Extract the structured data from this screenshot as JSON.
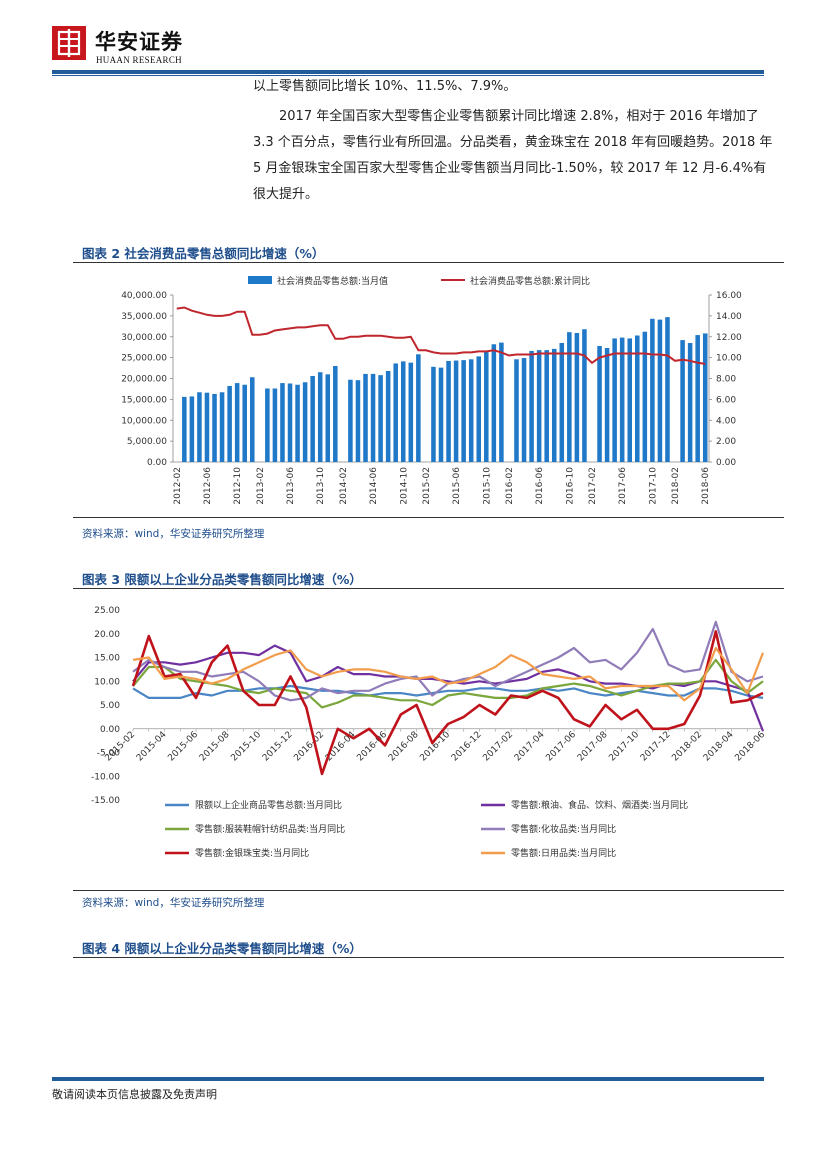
{
  "header": {
    "brand_cn": "华安证券",
    "brand_en": "HUAAN RESEARCH",
    "logo_icon": "huaan-logo-icon"
  },
  "body": {
    "para0": "以上零售额同比增长 10%、11.5%、7.9%。",
    "para1": "2017 年全国百家大型零售企业零售额累计同比增速 2.8%，相对于 2016 年增加了 3.3 个百分点，零售行业有所回温。分品类看，黄金珠宝在 2018 年有回暖趋势。2018 年 5 月金银珠宝全国百家大型零售企业零售额当月同比-1.50%，较 2017 年 12 月-6.4%有很大提升。"
  },
  "figures": {
    "fig2": {
      "title": "图表 2  社会消费品零售总额同比增速（%）",
      "source": "资料来源：wind，华安证券研究所整理"
    },
    "fig3": {
      "title": "图表 3  限额以上企业分品类零售额同比增速（%）",
      "source": "资料来源：wind，华安证券研究所整理"
    },
    "fig4": {
      "title": "图表 4  限额以上企业分品类零售额同比增速（%）"
    }
  },
  "footer": {
    "disclaimer": "敬请阅读本页信息披露及免责声明"
  },
  "colors": {
    "brand_blue": "#1f5c99",
    "brand_red": "#c8161d",
    "bar_blue": "#1f78c8",
    "line_red": "#c0262d"
  },
  "chart_data": [
    {
      "type": "bar",
      "combo": "bar+line dual-axis",
      "legend": [
        "社会消费品零售总额:当月值",
        "社会消费品零售总额:累计同比"
      ],
      "x": [
        "2012-02",
        "2012-03",
        "2012-04",
        "2012-05",
        "2012-06",
        "2012-07",
        "2012-08",
        "2012-09",
        "2012-10",
        "2012-11",
        "2012-12",
        "2013-02",
        "2013-03",
        "2013-04",
        "2013-05",
        "2013-06",
        "2013-07",
        "2013-08",
        "2013-09",
        "2013-10",
        "2013-11",
        "2013-12",
        "2014-02",
        "2014-03",
        "2014-04",
        "2014-05",
        "2014-06",
        "2014-07",
        "2014-08",
        "2014-09",
        "2014-10",
        "2014-11",
        "2014-12",
        "2015-02",
        "2015-03",
        "2015-04",
        "2015-05",
        "2015-06",
        "2015-07",
        "2015-08",
        "2015-09",
        "2015-10",
        "2015-11",
        "2015-12",
        "2016-02",
        "2016-03",
        "2016-04",
        "2016-05",
        "2016-06",
        "2016-07",
        "2016-08",
        "2016-09",
        "2016-10",
        "2016-11",
        "2016-12",
        "2017-02",
        "2017-03",
        "2017-04",
        "2017-05",
        "2017-06",
        "2017-07",
        "2017-08",
        "2017-09",
        "2017-10",
        "2017-11",
        "2017-12",
        "2018-02",
        "2018-03",
        "2018-04",
        "2018-05",
        "2018-06"
      ],
      "tick_labels": [
        "2012-02",
        "2012-06",
        "2012-10",
        "2013-02",
        "2013-06",
        "2013-10",
        "2014-02",
        "2014-06",
        "2014-10",
        "2015-02",
        "2015-06",
        "2015-10",
        "2016-02",
        "2016-06",
        "2016-10",
        "2017-02",
        "2017-06",
        "2017-10",
        "2018-02",
        "2018-06"
      ],
      "series": [
        {
          "name": "社会消费品零售总额:当月值",
          "axis": "left",
          "values": [
            null,
            15600,
            15700,
            16700,
            16600,
            16300,
            16700,
            18200,
            18900,
            18500,
            20300,
            null,
            17600,
            17600,
            18900,
            18800,
            18500,
            19100,
            20600,
            21500,
            21000,
            23000,
            null,
            19700,
            19600,
            21100,
            21100,
            20800,
            21800,
            23600,
            24100,
            23800,
            25800,
            null,
            22800,
            22600,
            24200,
            24300,
            24400,
            24600,
            25300,
            26500,
            28200,
            28600,
            null,
            24600,
            24900,
            26600,
            26800,
            26800,
            27100,
            28500,
            31100,
            30900,
            31800,
            null,
            27800,
            27300,
            29600,
            29800,
            29600,
            30300,
            31200,
            34300,
            34100,
            34700,
            null,
            29200,
            28500,
            30400,
            30800
          ]
        },
        {
          "name": "社会消费品零售总额:累计同比",
          "axis": "right",
          "values": [
            14.7,
            14.8,
            14.5,
            14.3,
            14.1,
            14.0,
            14.0,
            14.1,
            14.4,
            14.4,
            12.2,
            12.2,
            12.3,
            12.6,
            12.7,
            12.8,
            12.9,
            12.9,
            13.0,
            13.1,
            13.1,
            11.8,
            11.8,
            12.0,
            12.0,
            12.1,
            12.1,
            12.1,
            12.0,
            11.9,
            11.9,
            12.0,
            10.7,
            10.7,
            10.5,
            10.4,
            10.4,
            10.4,
            10.5,
            10.5,
            10.6,
            10.6,
            10.7,
            10.5,
            10.2,
            10.3,
            10.3,
            10.3,
            10.4,
            10.4,
            10.4,
            10.4,
            10.4,
            10.4,
            10.2,
            9.5,
            10.0,
            10.2,
            10.4,
            10.4,
            10.4,
            10.4,
            10.4,
            10.3,
            10.3,
            10.2,
            9.7,
            9.8,
            9.7,
            9.5,
            9.4
          ]
        }
      ],
      "ylim_left": [
        0,
        40000
      ],
      "ylim_right": [
        0,
        16
      ],
      "left_ticks": [
        "0.00",
        "5,000.00",
        "10,000.00",
        "15,000.00",
        "20,000.00",
        "25,000.00",
        "30,000.00",
        "35,000.00",
        "40,000.00"
      ],
      "right_ticks": [
        "0.00",
        "2.00",
        "4.00",
        "6.00",
        "8.00",
        "10.00",
        "12.00",
        "14.00",
        "16.00"
      ]
    },
    {
      "type": "line",
      "x": [
        "2015-02",
        "2015-03",
        "2015-04",
        "2015-05",
        "2015-06",
        "2015-07",
        "2015-08",
        "2015-09",
        "2015-10",
        "2015-11",
        "2015-12",
        "2016-01",
        "2016-02",
        "2016-03",
        "2016-04",
        "2016-05",
        "2016-06",
        "2016-07",
        "2016-08",
        "2016-09",
        "2016-10",
        "2016-11",
        "2016-12",
        "2017-01",
        "2017-02",
        "2017-03",
        "2017-04",
        "2017-05",
        "2017-06",
        "2017-07",
        "2017-08",
        "2017-09",
        "2017-10",
        "2017-11",
        "2017-12",
        "2018-01",
        "2018-02",
        "2018-03",
        "2018-04",
        "2018-05",
        "2018-06"
      ],
      "tick_labels": [
        "2015-02",
        "2015-04",
        "2015-06",
        "2015-08",
        "2015-10",
        "2015-12",
        "2016-02",
        "2016-04",
        "2016-06",
        "2016-08",
        "2016-10",
        "2016-12",
        "2017-02",
        "2017-04",
        "2017-06",
        "2017-08",
        "2017-10",
        "2017-12",
        "2018-02",
        "2018-04",
        "2018-06"
      ],
      "ylim": [
        -15,
        25
      ],
      "y_ticks": [
        "-15.00",
        "-10.00",
        "-5.00",
        "0.00",
        "5.00",
        "10.00",
        "15.00",
        "20.00",
        "25.00"
      ],
      "series": [
        {
          "name": "限额以上企业商品零售总额:当月同比",
          "color": "#4a86c5",
          "values": [
            8.5,
            6.5,
            6.5,
            6.5,
            7.5,
            7.0,
            8.0,
            8.0,
            8.5,
            8.5,
            9.0,
            8.5,
            8.0,
            8.0,
            7.5,
            7.0,
            7.5,
            7.5,
            7.0,
            7.5,
            8.0,
            8.0,
            8.5,
            8.5,
            8.0,
            8.0,
            8.5,
            8.0,
            8.5,
            7.5,
            7.0,
            7.5,
            8.0,
            7.5,
            7.0,
            7.0,
            8.5,
            8.5,
            8.0,
            7.0,
            6.5
          ]
        },
        {
          "name": "零售额:粮油、食品、饮料、烟酒类:当月同比",
          "color": "#7030a0",
          "values": [
            10.0,
            14.0,
            14.0,
            13.5,
            14.0,
            15.0,
            16.0,
            16.0,
            15.5,
            17.5,
            16.0,
            10.0,
            11.0,
            13.0,
            11.5,
            11.5,
            11.0,
            11.0,
            10.5,
            10.5,
            10.0,
            9.5,
            10.0,
            9.5,
            10.0,
            10.5,
            12.0,
            12.5,
            11.5,
            10.0,
            9.5,
            9.5,
            9.0,
            8.5,
            9.5,
            9.0,
            10.0,
            10.0,
            9.0,
            8.0,
            -0.5
          ]
        },
        {
          "name": "零售额:服装鞋帽针纺织品类:当月同比",
          "color": "#7aa63c",
          "values": [
            9.0,
            13.0,
            13.0,
            10.5,
            10.0,
            9.5,
            9.0,
            8.0,
            7.5,
            8.5,
            8.0,
            7.5,
            4.5,
            5.5,
            7.0,
            7.0,
            6.5,
            6.0,
            6.0,
            5.0,
            7.0,
            7.5,
            7.0,
            6.5,
            6.5,
            7.0,
            8.5,
            9.0,
            9.5,
            9.0,
            8.0,
            7.0,
            8.0,
            9.0,
            9.5,
            9.5,
            10.0,
            14.5,
            10.0,
            7.5,
            10.0
          ]
        },
        {
          "name": "零售额:化妆品类:当月同比",
          "color": "#8f7cb8",
          "values": [
            12.0,
            14.5,
            13.0,
            12.0,
            12.0,
            11.0,
            11.5,
            12.0,
            10.0,
            7.0,
            6.0,
            6.5,
            8.5,
            7.5,
            8.0,
            8.0,
            9.5,
            10.5,
            11.0,
            7.0,
            9.5,
            10.5,
            11.0,
            9.0,
            10.5,
            12.0,
            13.5,
            15.0,
            17.0,
            14.0,
            14.5,
            12.5,
            16.0,
            21.0,
            13.5,
            12.0,
            12.5,
            22.5,
            12.0,
            10.0,
            11.0
          ]
        },
        {
          "name": "零售额:金银珠宝类:当月同比",
          "color": "#c0121b",
          "values": [
            9.0,
            19.5,
            11.0,
            11.5,
            6.5,
            14.0,
            17.5,
            8.0,
            5.0,
            5.0,
            11.0,
            4.5,
            -9.5,
            0.0,
            -2.0,
            0.0,
            -3.5,
            3.0,
            5.0,
            -3.0,
            1.0,
            2.5,
            5.0,
            3.0,
            7.0,
            6.5,
            8.0,
            6.5,
            2.0,
            0.5,
            5.0,
            2.0,
            4.0,
            0.0,
            0.0,
            1.0,
            7.0,
            20.5,
            5.5,
            6.0,
            7.5
          ]
        },
        {
          "name": "零售额:日用品类:当月同比",
          "color": "#f29d4c",
          "values": [
            14.5,
            15.0,
            10.5,
            11.0,
            10.5,
            9.5,
            10.5,
            12.5,
            14.0,
            15.5,
            16.5,
            12.5,
            11.0,
            12.0,
            12.5,
            12.5,
            12.0,
            11.0,
            10.5,
            11.0,
            9.5,
            10.0,
            11.5,
            13.0,
            15.5,
            14.0,
            11.5,
            11.0,
            10.5,
            11.0,
            8.5,
            9.0,
            9.0,
            9.0,
            9.0,
            6.0,
            8.5,
            17.0,
            12.5,
            7.5,
            16.0
          ]
        }
      ]
    }
  ]
}
